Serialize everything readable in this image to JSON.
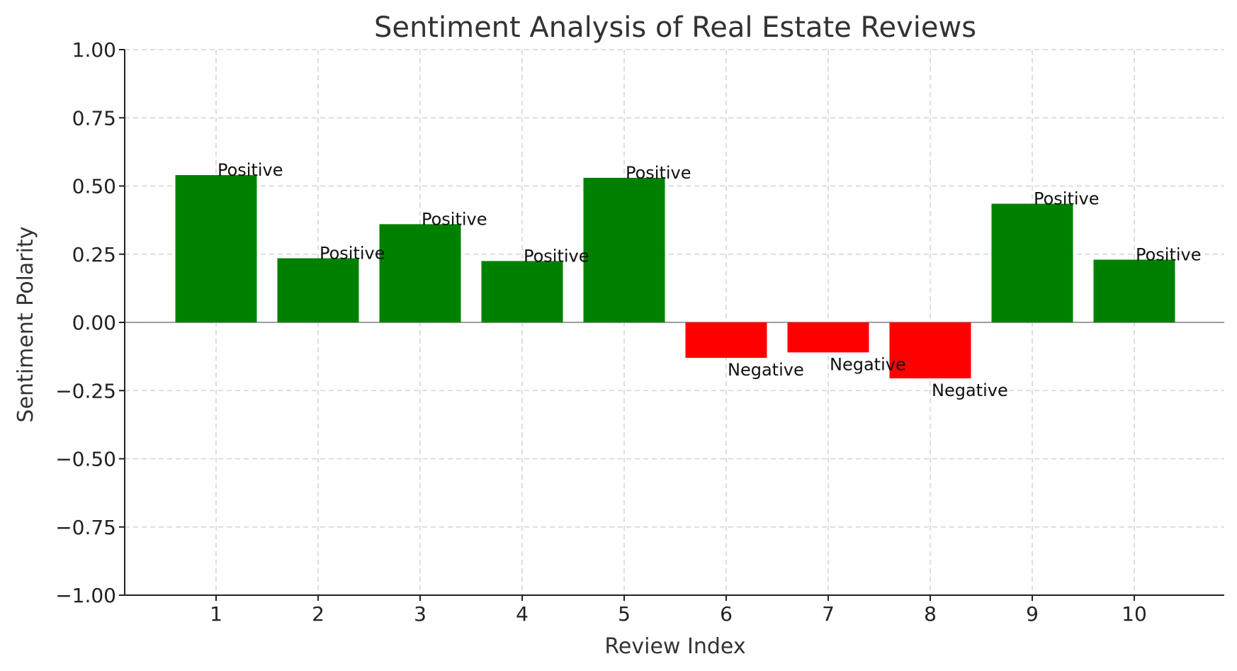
{
  "chart_data": {
    "type": "bar",
    "title": "Sentiment Analysis of Real Estate Reviews",
    "xlabel": "Review Index",
    "ylabel": "Sentiment Polarity",
    "categories": [
      "1",
      "2",
      "3",
      "4",
      "5",
      "6",
      "7",
      "8",
      "9",
      "10"
    ],
    "values": [
      0.54,
      0.235,
      0.36,
      0.225,
      0.53,
      -0.13,
      -0.11,
      -0.205,
      0.435,
      0.23
    ],
    "labels": [
      "Positive",
      "Positive",
      "Positive",
      "Positive",
      "Positive",
      "Negative",
      "Negative",
      "Negative",
      "Positive",
      "Positive"
    ],
    "ylim": [
      -1.0,
      1.0
    ],
    "yticks": [
      "−1.00",
      "−0.75",
      "−0.50",
      "−0.25",
      "0.00",
      "0.25",
      "0.50",
      "0.75",
      "1.00"
    ],
    "ytick_values": [
      -1.0,
      -0.75,
      -0.5,
      -0.25,
      0.0,
      0.25,
      0.5,
      0.75,
      1.0
    ],
    "grid": true,
    "colors": {
      "positive": "#008000",
      "negative": "#ff0000",
      "zero_line": "#808080",
      "axis": "#222222"
    }
  }
}
